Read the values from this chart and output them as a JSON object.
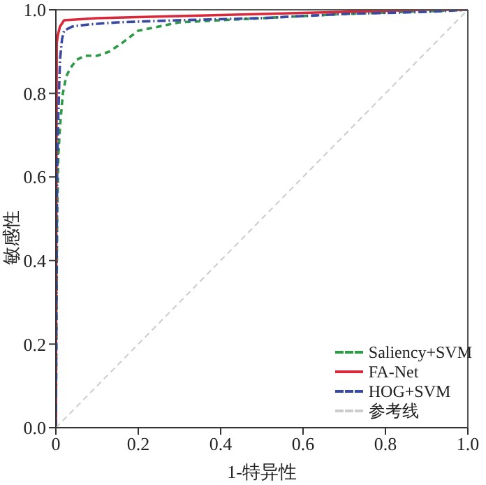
{
  "chart_data": {
    "type": "line",
    "xlabel": "1-特异性",
    "ylabel": "敏感性",
    "xlim": [
      0,
      1
    ],
    "ylim": [
      0,
      1
    ],
    "xticks": [
      0,
      {
        "value": 0.2,
        "label": "0.2"
      },
      {
        "value": 0.4,
        "label": "0.4"
      },
      {
        "value": 0.6,
        "label": "0.6"
      },
      {
        "value": 0.8,
        "label": "0.8"
      },
      {
        "value": 1,
        "label": "1.0"
      }
    ],
    "yticks": [
      {
        "value": 0,
        "label": "0.0"
      },
      {
        "value": 0.2,
        "label": "0.2"
      },
      {
        "value": 0.4,
        "label": "0.4"
      },
      {
        "value": 0.6,
        "label": "0.6"
      },
      {
        "value": 0.8,
        "label": "0.8"
      },
      {
        "value": 1,
        "label": "1.0"
      }
    ],
    "grid": false,
    "legend": "bottom right",
    "marker": "none",
    "series": [
      {
        "name": "Saliency+SVM",
        "color": "#2e9a48",
        "line_style": "dashed",
        "x": [
          0,
          0.003,
          0.006,
          0.01,
          0.017,
          0.025,
          0.035,
          0.05,
          0.07,
          0.1,
          0.13,
          0.16,
          0.2,
          0.25,
          0.3,
          0.4,
          0.5,
          0.7,
          0.85,
          1
        ],
        "values": [
          0,
          0.5,
          0.65,
          0.72,
          0.8,
          0.84,
          0.86,
          0.88,
          0.89,
          0.89,
          0.9,
          0.92,
          0.95,
          0.96,
          0.97,
          0.975,
          0.98,
          0.99,
          0.995,
          1
        ]
      },
      {
        "name": "FA-Net",
        "color": "#d8283a",
        "line_style": "solid",
        "x": [
          0,
          0.002,
          0.005,
          0.01,
          0.02,
          0.1,
          0.3,
          0.5,
          0.7,
          0.9,
          1
        ],
        "values": [
          0,
          0.92,
          0.94,
          0.96,
          0.975,
          0.98,
          0.985,
          0.99,
          0.995,
          1,
          1
        ]
      },
      {
        "name": "HOG+SVM",
        "color": "#3a4aa0",
        "line_style": "dashdot",
        "x": [
          0,
          0.003,
          0.006,
          0.01,
          0.015,
          0.02,
          0.04,
          0.08,
          0.15,
          0.3,
          0.5,
          0.7,
          0.9,
          1
        ],
        "values": [
          0,
          0.6,
          0.75,
          0.88,
          0.93,
          0.95,
          0.96,
          0.965,
          0.97,
          0.975,
          0.98,
          0.99,
          0.995,
          1
        ]
      },
      {
        "name": "参考线",
        "color": "#cccccc",
        "line_style": "dashed",
        "x": [
          0,
          1
        ],
        "values": [
          0,
          1
        ]
      }
    ]
  }
}
